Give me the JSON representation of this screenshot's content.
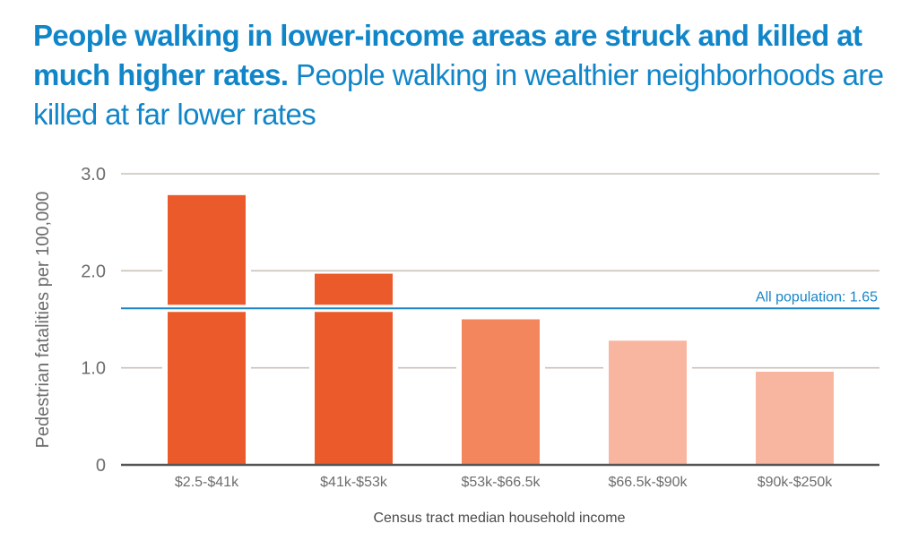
{
  "title": {
    "bold": "People walking in lower-income areas are struck and killed at much higher rates.",
    "light": "People walking in wealthier neighborhoods are killed at far lower rates"
  },
  "chart_data": {
    "type": "bar",
    "title": "People walking in lower-income areas are struck and killed at much higher rates. People walking in wealthier neighborhoods are killed at far lower rates",
    "xlabel": "Census tract median household income",
    "ylabel": "Pedestrian fatalities per 100,000",
    "categories": [
      "$2.5-$41k",
      "$41k-$53k",
      "$53k-$66.5k",
      "$66.5k-$90k",
      "$90k-$250k"
    ],
    "values": [
      2.78,
      1.97,
      1.5,
      1.28,
      0.96
    ],
    "bar_colors": [
      "#eb5a2a",
      "#eb5a2a",
      "#f4865e",
      "#f8b6a0",
      "#f8b6a0"
    ],
    "ylim": [
      0,
      3.0
    ],
    "yticks": [
      {
        "value": 0,
        "label": "0"
      },
      {
        "value": 1.0,
        "label": "1.0"
      },
      {
        "value": 2.0,
        "label": "2.0"
      },
      {
        "value": 3.0,
        "label": "3.0"
      }
    ],
    "grid": true,
    "reference_line": {
      "value": 1.65,
      "label": "All population: 1.65",
      "color": "#1a86c8"
    },
    "legend": "none"
  }
}
